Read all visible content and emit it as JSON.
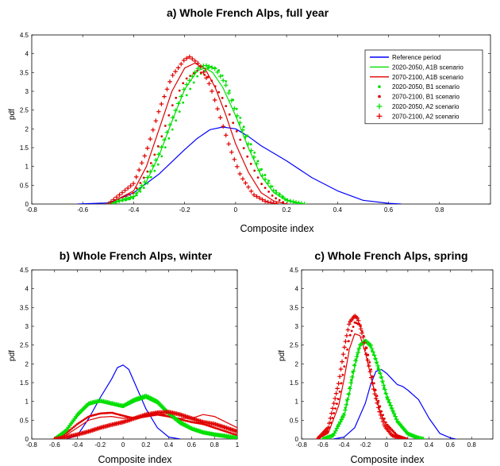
{
  "colors": {
    "reference": "#0000ff",
    "future_2020_2050": "#00e000",
    "future_2070_2100": "#e00000"
  },
  "chart_data": [
    {
      "type": "line",
      "title": "a) Whole French Alps, full year",
      "xlabel": "Composite index",
      "ylabel": "pdf",
      "xlim": [
        -0.8,
        1.0
      ],
      "ylim": [
        0,
        4.5
      ],
      "xticks": [
        "-0.8",
        "-0.6",
        "-0.4",
        "-0.2",
        "0",
        "0.2",
        "0.4",
        "0.6",
        "0.8"
      ],
      "yticks": [
        "0",
        "0.5",
        "1",
        "1.5",
        "2",
        "2.5",
        "3",
        "3.5",
        "4",
        "4.5"
      ],
      "legend": {
        "position": "top-right"
      },
      "series": [
        {
          "name": "Reference period",
          "color": "#0000ff",
          "marker": "line",
          "x": [
            -0.62,
            -0.5,
            -0.4,
            -0.3,
            -0.2,
            -0.15,
            -0.1,
            -0.05,
            0.0,
            0.05,
            0.1,
            0.15,
            0.2,
            0.3,
            0.4,
            0.5,
            0.6,
            0.65
          ],
          "y": [
            0,
            0.03,
            0.3,
            0.8,
            1.45,
            1.75,
            1.98,
            2.05,
            2.0,
            1.8,
            1.55,
            1.35,
            1.15,
            0.7,
            0.35,
            0.1,
            0.02,
            0
          ]
        },
        {
          "name": "2020-2050, A1B scenario",
          "color": "#00e000",
          "marker": "line",
          "x": [
            -0.5,
            -0.4,
            -0.35,
            -0.3,
            -0.25,
            -0.2,
            -0.15,
            -0.12,
            -0.09,
            -0.05,
            0.0,
            0.05,
            0.1,
            0.15,
            0.2,
            0.25
          ],
          "y": [
            0,
            0.18,
            0.6,
            1.3,
            2.2,
            3.05,
            3.55,
            3.62,
            3.5,
            3.1,
            2.35,
            1.5,
            0.75,
            0.3,
            0.1,
            0
          ]
        },
        {
          "name": "2070-2100, A1B scenario",
          "color": "#e00000",
          "marker": "line",
          "x": [
            -0.5,
            -0.4,
            -0.35,
            -0.3,
            -0.25,
            -0.2,
            -0.16,
            -0.12,
            -0.08,
            -0.04,
            0.0,
            0.05,
            0.1,
            0.15,
            0.2
          ],
          "y": [
            0,
            0.35,
            1.0,
            2.0,
            3.0,
            3.62,
            3.75,
            3.6,
            3.1,
            2.4,
            1.6,
            0.85,
            0.3,
            0.08,
            0
          ]
        },
        {
          "name": "2020-2050, B1 scenario",
          "color": "#00e000",
          "marker": "dot",
          "x": [
            -0.5,
            -0.4,
            -0.35,
            -0.3,
            -0.25,
            -0.2,
            -0.15,
            -0.1,
            -0.07,
            -0.04,
            0.0,
            0.05,
            0.1,
            0.15,
            0.2,
            0.25
          ],
          "y": [
            0,
            0.15,
            0.5,
            1.1,
            1.95,
            2.8,
            3.4,
            3.66,
            3.6,
            3.3,
            2.6,
            1.75,
            0.95,
            0.4,
            0.12,
            0
          ]
        },
        {
          "name": "2070-2100, B1 scenario",
          "color": "#e00000",
          "marker": "dot",
          "x": [
            -0.5,
            -0.4,
            -0.35,
            -0.3,
            -0.25,
            -0.2,
            -0.15,
            -0.1,
            -0.05,
            0.0,
            0.05,
            0.1,
            0.15,
            0.2
          ],
          "y": [
            0,
            0.3,
            0.8,
            1.6,
            2.6,
            3.3,
            3.55,
            3.35,
            2.8,
            2.0,
            1.2,
            0.55,
            0.18,
            0
          ]
        },
        {
          "name": "2020-2050, A2 scenario",
          "color": "#00e000",
          "marker": "plus",
          "x": [
            -0.5,
            -0.4,
            -0.35,
            -0.3,
            -0.25,
            -0.2,
            -0.15,
            -0.12,
            -0.08,
            -0.04,
            0.0,
            0.05,
            0.1,
            0.15,
            0.2,
            0.27
          ],
          "y": [
            0,
            0.2,
            0.65,
            1.35,
            2.25,
            3.1,
            3.6,
            3.7,
            3.6,
            3.2,
            2.45,
            1.6,
            0.8,
            0.35,
            0.1,
            0
          ]
        },
        {
          "name": "2070-2100, A2 scenario",
          "color": "#e00000",
          "marker": "plus",
          "x": [
            -0.5,
            -0.4,
            -0.35,
            -0.3,
            -0.25,
            -0.2,
            -0.18,
            -0.14,
            -0.1,
            -0.06,
            -0.02,
            0.02,
            0.07,
            0.12,
            0.17
          ],
          "y": [
            0,
            0.55,
            1.4,
            2.5,
            3.4,
            3.85,
            3.92,
            3.7,
            3.15,
            2.3,
            1.45,
            0.75,
            0.25,
            0.06,
            0
          ]
        }
      ]
    },
    {
      "type": "line",
      "title": "b) Whole French Alps, winter",
      "xlabel": "Composite index",
      "ylabel": "pdf",
      "xlim": [
        -0.8,
        1.0
      ],
      "ylim": [
        0,
        4.5
      ],
      "xticks": [
        "-0.8",
        "-0.6",
        "-0.4",
        "-0.2",
        "0",
        "0.2",
        "0.4",
        "0.6",
        "0.8",
        "1"
      ],
      "yticks": [
        "0",
        "0.5",
        "1",
        "1.5",
        "2",
        "2.5",
        "3",
        "3.5",
        "4",
        "4.5"
      ],
      "series": [
        {
          "name": "Reference period",
          "color": "#0000ff",
          "marker": "line",
          "x": [
            -0.5,
            -0.4,
            -0.3,
            -0.2,
            -0.1,
            -0.05,
            0.0,
            0.05,
            0.1,
            0.2,
            0.3,
            0.4,
            0.5
          ],
          "y": [
            0,
            0.1,
            0.55,
            1.1,
            1.6,
            1.9,
            1.97,
            1.85,
            1.5,
            0.8,
            0.3,
            0.05,
            0
          ]
        },
        {
          "name": "2020-2050, A1B scenario",
          "color": "#00e000",
          "marker": "line",
          "x": [
            -0.6,
            -0.5,
            -0.4,
            -0.3,
            -0.2,
            -0.1,
            0.0,
            0.1,
            0.2,
            0.3,
            0.4,
            0.5,
            0.6,
            0.7,
            0.8,
            0.9,
            1.0
          ],
          "y": [
            0,
            0.2,
            0.6,
            0.9,
            1.0,
            0.95,
            0.9,
            1.05,
            1.12,
            1.0,
            0.7,
            0.45,
            0.3,
            0.2,
            0.15,
            0.1,
            0.05
          ]
        },
        {
          "name": "2070-2100, A1B scenario",
          "color": "#e00000",
          "marker": "line",
          "x": [
            -0.6,
            -0.5,
            -0.4,
            -0.3,
            -0.2,
            -0.1,
            0.0,
            0.1,
            0.2,
            0.3,
            0.4,
            0.5,
            0.6,
            0.7,
            0.8,
            0.9,
            1.0
          ],
          "y": [
            0,
            0.1,
            0.3,
            0.5,
            0.58,
            0.6,
            0.55,
            0.58,
            0.65,
            0.72,
            0.6,
            0.55,
            0.55,
            0.65,
            0.6,
            0.45,
            0.3
          ]
        },
        {
          "name": "2020-2050, B1 scenario",
          "color": "#00e000",
          "marker": "dot",
          "x": [
            -0.6,
            -0.5,
            -0.4,
            -0.3,
            -0.2,
            -0.1,
            0.0,
            0.1,
            0.2,
            0.3,
            0.4,
            0.5,
            0.6,
            0.7,
            0.8,
            0.9,
            1.0
          ],
          "y": [
            0,
            0.25,
            0.62,
            0.92,
            1.0,
            0.92,
            0.85,
            1.0,
            1.1,
            0.95,
            0.65,
            0.4,
            0.25,
            0.15,
            0.1,
            0.05,
            0.02
          ]
        },
        {
          "name": "2070-2100, B1 scenario",
          "color": "#e00000",
          "marker": "dot",
          "x": [
            -0.6,
            -0.5,
            -0.4,
            -0.3,
            -0.2,
            -0.1,
            0.0,
            0.1,
            0.2,
            0.3,
            0.4,
            0.5,
            0.6,
            0.7,
            0.8,
            0.9,
            1.0
          ],
          "y": [
            0,
            0.15,
            0.4,
            0.6,
            0.68,
            0.7,
            0.62,
            0.55,
            0.6,
            0.65,
            0.6,
            0.52,
            0.45,
            0.4,
            0.3,
            0.2,
            0.1
          ]
        },
        {
          "name": "2020-2050, A2 scenario",
          "color": "#00e000",
          "marker": "plus",
          "x": [
            -0.6,
            -0.5,
            -0.4,
            -0.3,
            -0.2,
            -0.1,
            0.0,
            0.1,
            0.2,
            0.3,
            0.4,
            0.5,
            0.6,
            0.7,
            0.8,
            0.9,
            1.0
          ],
          "y": [
            0,
            0.22,
            0.65,
            0.95,
            1.02,
            0.95,
            0.88,
            1.05,
            1.15,
            1.0,
            0.68,
            0.45,
            0.28,
            0.18,
            0.12,
            0.08,
            0.03
          ]
        },
        {
          "name": "2070-2100, A2 scenario",
          "color": "#e00000",
          "marker": "plus",
          "x": [
            -0.6,
            -0.5,
            -0.4,
            -0.3,
            -0.2,
            -0.1,
            0.0,
            0.1,
            0.2,
            0.3,
            0.4,
            0.5,
            0.6,
            0.7,
            0.8,
            0.9,
            1.0
          ],
          "y": [
            0,
            0.05,
            0.12,
            0.2,
            0.3,
            0.38,
            0.45,
            0.55,
            0.65,
            0.7,
            0.72,
            0.65,
            0.55,
            0.45,
            0.4,
            0.3,
            0.2
          ]
        }
      ]
    },
    {
      "type": "line",
      "title": "c) Whole French Alps, spring",
      "xlabel": "Composite index",
      "ylabel": "pdf",
      "xlim": [
        -0.8,
        1.0
      ],
      "ylim": [
        0,
        4.5
      ],
      "xticks": [
        "-0.8",
        "-0.6",
        "-0.4",
        "-0.2",
        "0",
        "0.2",
        "0.4",
        "0.6",
        "0.8"
      ],
      "yticks": [
        "0",
        "0.5",
        "1",
        "1.5",
        "2",
        "2.5",
        "3",
        "3.5",
        "4",
        "4.5"
      ],
      "series": [
        {
          "name": "Reference period",
          "color": "#0000ff",
          "marker": "line",
          "x": [
            -0.5,
            -0.4,
            -0.3,
            -0.2,
            -0.15,
            -0.1,
            -0.05,
            0.0,
            0.05,
            0.1,
            0.15,
            0.2,
            0.3,
            0.4,
            0.5,
            0.6,
            0.65
          ],
          "y": [
            0,
            0.05,
            0.3,
            0.95,
            1.45,
            1.8,
            1.85,
            1.75,
            1.6,
            1.45,
            1.4,
            1.3,
            1.05,
            0.55,
            0.15,
            0.03,
            0
          ]
        },
        {
          "name": "2020-2050, A1B scenario",
          "color": "#00e000",
          "marker": "line",
          "x": [
            -0.6,
            -0.5,
            -0.4,
            -0.35,
            -0.3,
            -0.25,
            -0.2,
            -0.15,
            -0.1,
            -0.05,
            0.0,
            0.1,
            0.2,
            0.3,
            0.35
          ],
          "y": [
            0,
            0.1,
            0.6,
            1.2,
            1.9,
            2.45,
            2.6,
            2.5,
            2.15,
            1.7,
            1.2,
            0.5,
            0.15,
            0.03,
            0
          ]
        },
        {
          "name": "2070-2100, A1B scenario",
          "color": "#e00000",
          "marker": "line",
          "x": [
            -0.65,
            -0.55,
            -0.45,
            -0.4,
            -0.35,
            -0.3,
            -0.25,
            -0.2,
            -0.15,
            -0.1,
            -0.05,
            0.0,
            0.1,
            0.2
          ],
          "y": [
            0,
            0.15,
            0.9,
            1.6,
            2.4,
            2.8,
            2.75,
            2.3,
            1.7,
            1.1,
            0.65,
            0.35,
            0.08,
            0
          ]
        },
        {
          "name": "2020-2050, B1 scenario",
          "color": "#00e000",
          "marker": "dot",
          "x": [
            -0.6,
            -0.5,
            -0.4,
            -0.35,
            -0.3,
            -0.25,
            -0.2,
            -0.15,
            -0.1,
            -0.05,
            0.0,
            0.1,
            0.2,
            0.3,
            0.35
          ],
          "y": [
            0,
            0.12,
            0.7,
            1.35,
            2.05,
            2.5,
            2.58,
            2.45,
            2.05,
            1.6,
            1.1,
            0.45,
            0.12,
            0.02,
            0
          ]
        },
        {
          "name": "2070-2100, B1 scenario",
          "color": "#e00000",
          "marker": "dot",
          "x": [
            -0.65,
            -0.55,
            -0.45,
            -0.4,
            -0.35,
            -0.3,
            -0.25,
            -0.2,
            -0.15,
            -0.1,
            -0.05,
            0.0,
            0.1,
            0.2
          ],
          "y": [
            0,
            0.2,
            1.1,
            1.9,
            2.7,
            3.1,
            3.05,
            2.6,
            1.9,
            1.25,
            0.75,
            0.4,
            0.1,
            0
          ]
        },
        {
          "name": "2020-2050, A2 scenario",
          "color": "#00e000",
          "marker": "plus",
          "x": [
            -0.6,
            -0.5,
            -0.4,
            -0.35,
            -0.3,
            -0.25,
            -0.2,
            -0.15,
            -0.1,
            -0.05,
            0.0,
            0.1,
            0.2,
            0.3,
            0.35
          ],
          "y": [
            0,
            0.1,
            0.65,
            1.3,
            2.0,
            2.5,
            2.62,
            2.5,
            2.1,
            1.65,
            1.15,
            0.48,
            0.14,
            0.03,
            0
          ]
        },
        {
          "name": "2070-2100, A2 scenario",
          "color": "#e00000",
          "marker": "plus",
          "x": [
            -0.65,
            -0.55,
            -0.45,
            -0.4,
            -0.35,
            -0.3,
            -0.27,
            -0.22,
            -0.17,
            -0.12,
            -0.07,
            -0.02,
            0.05,
            0.15
          ],
          "y": [
            0,
            0.3,
            1.5,
            2.4,
            3.1,
            3.28,
            3.2,
            2.7,
            2.0,
            1.3,
            0.75,
            0.35,
            0.1,
            0
          ]
        }
      ]
    }
  ]
}
